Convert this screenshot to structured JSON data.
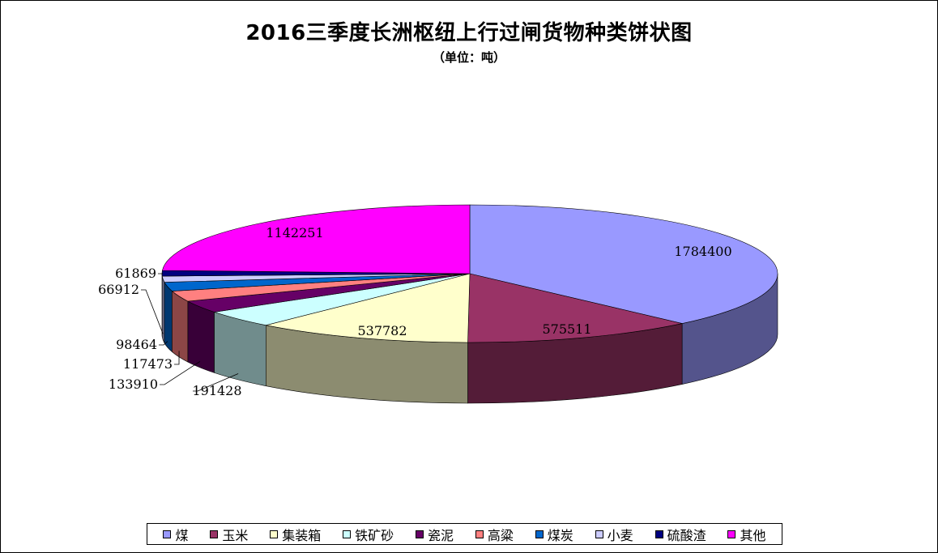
{
  "chart_data": {
    "type": "pie",
    "title": "2016三季度长洲枢纽上行过闸货物种类饼状图",
    "subtitle": "（单位：吨）",
    "legend_position": "bottom",
    "three_d": true,
    "slices": [
      {
        "name": "煤",
        "value": 1784400,
        "label": "1784400",
        "color": "#9999ff"
      },
      {
        "name": "玉米",
        "value": 575511,
        "label": "575511",
        "color": "#993366"
      },
      {
        "name": "集装箱",
        "value": 537782,
        "label": "537782",
        "color": "#ffffcc"
      },
      {
        "name": "铁矿砂",
        "value": 191428,
        "label": "191428",
        "color": "#ccffff"
      },
      {
        "name": "瓷泥",
        "value": 133910,
        "label": "133910",
        "color": "#660066"
      },
      {
        "name": "高粱",
        "value": 117473,
        "label": "117473",
        "color": "#ff8080"
      },
      {
        "name": "煤炭",
        "value": 98464,
        "label": "98464",
        "color": "#0066cc"
      },
      {
        "name": "小麦",
        "value": 66912,
        "label": "66912",
        "color": "#ccccff"
      },
      {
        "name": "硫酸渣",
        "value": 61869,
        "label": "61869",
        "color": "#000080"
      },
      {
        "name": "其他",
        "value": 1142251,
        "label": "1142251",
        "color": "#ff00ff"
      }
    ]
  }
}
